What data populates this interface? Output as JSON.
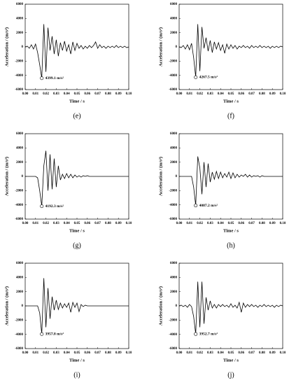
{
  "chart_data": [
    {
      "type": "line",
      "label": "(e)",
      "xlabel": "Time / s",
      "ylabel": "Acceleration / (m/s²)",
      "annotation": "4399.1 m/s²",
      "color": "#000000",
      "xlim": [
        0,
        0.1
      ],
      "ylim": [
        -6000,
        6000
      ],
      "xticks": [
        {
          "value": 0,
          "label": "0.00"
        },
        {
          "value": 0.01,
          "label": "0.01"
        },
        {
          "value": 0.02,
          "label": "0.02"
        },
        {
          "value": 0.03,
          "label": "0.03"
        },
        {
          "value": 0.04,
          "label": "0.04"
        },
        {
          "value": 0.05,
          "label": "0.05"
        },
        {
          "value": 0.06,
          "label": "0.06"
        },
        {
          "value": 0.07,
          "label": "0.07"
        },
        {
          "value": 0.08,
          "label": "0.08"
        },
        {
          "value": 0.09,
          "label": "0.09"
        },
        {
          "value": 0.1,
          "label": "0.10"
        }
      ],
      "yticks": [
        -6000,
        -4000,
        -2000,
        0,
        2000,
        4000,
        6000
      ],
      "x": [
        0,
        0.002,
        0.004,
        0.006,
        0.008,
        0.01,
        0.012,
        0.014,
        0.016,
        0.018,
        0.02,
        0.022,
        0.024,
        0.026,
        0.028,
        0.03,
        0.032,
        0.034,
        0.036,
        0.038,
        0.04,
        0.042,
        0.044,
        0.046,
        0.048,
        0.05,
        0.052,
        0.054,
        0.056,
        0.058,
        0.06,
        0.062,
        0.064,
        0.066,
        0.068,
        0.07,
        0.072,
        0.074,
        0.076,
        0.078,
        0.08,
        0.082,
        0.084,
        0.086,
        0.088,
        0.09,
        0.092,
        0.094,
        0.096,
        0.098,
        0.1
      ],
      "values": [
        0,
        100,
        -200,
        300,
        -300,
        400,
        -800,
        -2500,
        -4399.1,
        3200,
        -3500,
        2700,
        -500,
        1500,
        -1000,
        1000,
        -1300,
        600,
        -500,
        800,
        -600,
        300,
        -1000,
        700,
        -500,
        500,
        -200,
        200,
        -300,
        100,
        -200,
        200,
        -100,
        200,
        700,
        -200,
        300,
        -100,
        100,
        -200,
        100,
        -100,
        100,
        -100,
        200,
        -100,
        100,
        -100,
        100,
        -100,
        0
      ]
    },
    {
      "type": "line",
      "label": "(f)",
      "xlabel": "Time / s",
      "ylabel": "Acceleration / (m/s²)",
      "annotation": "4267.5 m/s²",
      "color": "#000000",
      "xlim": [
        0,
        0.1
      ],
      "ylim": [
        -6000,
        6000
      ],
      "xticks": [
        {
          "value": 0,
          "label": "0.00"
        },
        {
          "value": 0.01,
          "label": "0.01"
        },
        {
          "value": 0.02,
          "label": "0.02"
        },
        {
          "value": 0.03,
          "label": "0.03"
        },
        {
          "value": 0.04,
          "label": "0.04"
        },
        {
          "value": 0.05,
          "label": "0.05"
        },
        {
          "value": 0.06,
          "label": "0.06"
        },
        {
          "value": 0.07,
          "label": "0.07"
        },
        {
          "value": 0.08,
          "label": "0.08"
        },
        {
          "value": 0.09,
          "label": "0.09"
        },
        {
          "value": 0.1,
          "label": "0.10"
        }
      ],
      "yticks": [
        -6000,
        -4000,
        -2000,
        0,
        2000,
        4000,
        6000
      ],
      "x": [
        0,
        0.002,
        0.004,
        0.006,
        0.008,
        0.01,
        0.012,
        0.014,
        0.016,
        0.018,
        0.02,
        0.022,
        0.024,
        0.026,
        0.028,
        0.03,
        0.032,
        0.034,
        0.036,
        0.038,
        0.04,
        0.042,
        0.044,
        0.046,
        0.048,
        0.05,
        0.052,
        0.054,
        0.056,
        0.058,
        0.06,
        0.062,
        0.064,
        0.066,
        0.068,
        0.07,
        0.072,
        0.074,
        0.076,
        0.078,
        0.08,
        0.082,
        0.084,
        0.086,
        0.088,
        0.09,
        0.092,
        0.094,
        0.096,
        0.098,
        0.1
      ],
      "values": [
        0,
        -100,
        200,
        -300,
        300,
        -400,
        500,
        -1500,
        -4267.5,
        3200,
        -3400,
        2800,
        -200,
        1300,
        -600,
        900,
        -800,
        700,
        -300,
        600,
        -500,
        300,
        -900,
        400,
        -300,
        300,
        -200,
        200,
        -300,
        100,
        -100,
        200,
        -100,
        100,
        -200,
        200,
        -100,
        100,
        -100,
        200,
        -100,
        100,
        -100,
        100,
        -200,
        100,
        -100,
        100,
        -100,
        100,
        0
      ]
    },
    {
      "type": "line",
      "label": "(g)",
      "xlabel": "Time / s",
      "ylabel": "Acceleration / (m/s²)",
      "annotation": "4192.3 m/s²",
      "color": "#000000",
      "xlim": [
        0,
        0.1
      ],
      "ylim": [
        -6000,
        6000
      ],
      "xticks": [
        {
          "value": 0,
          "label": "0.00"
        },
        {
          "value": 0.01,
          "label": "0.01"
        },
        {
          "value": 0.02,
          "label": "0.02"
        },
        {
          "value": 0.03,
          "label": "0.03"
        },
        {
          "value": 0.04,
          "label": "0.04"
        },
        {
          "value": 0.05,
          "label": "0.05"
        },
        {
          "value": 0.06,
          "label": "0.06"
        },
        {
          "value": 0.07,
          "label": "0.07"
        },
        {
          "value": 0.08,
          "label": "0.08"
        },
        {
          "value": 0.09,
          "label": "0.09"
        },
        {
          "value": 0.1,
          "label": "0.10"
        }
      ],
      "yticks": [
        -6000,
        -4000,
        -2000,
        0,
        2000,
        4000,
        6000
      ],
      "x": [
        0,
        0.002,
        0.004,
        0.006,
        0.008,
        0.01,
        0.012,
        0.014,
        0.016,
        0.018,
        0.02,
        0.022,
        0.024,
        0.026,
        0.028,
        0.03,
        0.032,
        0.034,
        0.036,
        0.038,
        0.04,
        0.042,
        0.044,
        0.046,
        0.048,
        0.05,
        0.052,
        0.054,
        0.056,
        0.058,
        0.06,
        0.062,
        0.064,
        0.066,
        0.068,
        0.07,
        0.072,
        0.074,
        0.076,
        0.078,
        0.08,
        0.082,
        0.084,
        0.086,
        0.088,
        0.09,
        0.092,
        0.094,
        0.096,
        0.098,
        0.1
      ],
      "values": [
        0,
        0,
        0,
        0,
        0,
        0,
        -200,
        -2000,
        -4192.3,
        1500,
        3600,
        -2000,
        3100,
        -1800,
        2500,
        -1500,
        1500,
        -500,
        300,
        -300,
        400,
        -200,
        300,
        -200,
        200,
        -100,
        100,
        -100,
        100,
        0,
        100,
        0,
        0,
        0,
        0,
        0,
        0,
        0,
        0,
        0,
        0,
        0,
        0,
        0,
        0,
        0,
        0,
        0,
        0,
        0,
        0
      ]
    },
    {
      "type": "line",
      "label": "(h)",
      "xlabel": "Time / s",
      "ylabel": "Acceleration / (m/s²)",
      "annotation": "4087.2 m/s²",
      "color": "#000000",
      "xlim": [
        0,
        0.1
      ],
      "ylim": [
        -6000,
        6000
      ],
      "xticks": [
        {
          "value": 0,
          "label": "0.00"
        },
        {
          "value": 0.01,
          "label": "0.01"
        },
        {
          "value": 0.02,
          "label": "0.02"
        },
        {
          "value": 0.03,
          "label": "0.03"
        },
        {
          "value": 0.04,
          "label": "0.04"
        },
        {
          "value": 0.05,
          "label": "0.05"
        },
        {
          "value": 0.06,
          "label": "0.06"
        },
        {
          "value": 0.07,
          "label": "0.07"
        },
        {
          "value": 0.08,
          "label": "0.08"
        },
        {
          "value": 0.09,
          "label": "0.09"
        },
        {
          "value": 0.1,
          "label": "0.10"
        }
      ],
      "yticks": [
        -6000,
        -4000,
        -2000,
        0,
        2000,
        4000,
        6000
      ],
      "x": [
        0,
        0.002,
        0.004,
        0.006,
        0.008,
        0.01,
        0.012,
        0.014,
        0.016,
        0.018,
        0.02,
        0.022,
        0.024,
        0.026,
        0.028,
        0.03,
        0.032,
        0.034,
        0.036,
        0.038,
        0.04,
        0.042,
        0.044,
        0.046,
        0.048,
        0.05,
        0.052,
        0.054,
        0.056,
        0.058,
        0.06,
        0.062,
        0.064,
        0.066,
        0.068,
        0.07,
        0.072,
        0.074,
        0.076,
        0.078,
        0.08,
        0.082,
        0.084,
        0.086,
        0.088,
        0.09,
        0.092,
        0.094,
        0.096,
        0.098,
        0.1
      ],
      "values": [
        0,
        0,
        0,
        0,
        0,
        0,
        0,
        -1500,
        -4087.2,
        2800,
        1200,
        -2500,
        2000,
        -1500,
        1800,
        -800,
        600,
        -400,
        700,
        -300,
        600,
        -200,
        400,
        -100,
        600,
        -300,
        500,
        -200,
        300,
        -100,
        200,
        0,
        300,
        -100,
        200,
        -100,
        100,
        0,
        100,
        -100,
        100,
        0,
        0,
        0,
        0,
        0,
        0,
        0,
        0,
        0,
        0
      ]
    },
    {
      "type": "line",
      "label": "(i)",
      "xlabel": "Time / s",
      "ylabel": "Acceleration / (m/s²)",
      "annotation": "3957.8 m/s²",
      "color": "#000000",
      "xlim": [
        0,
        0.1
      ],
      "ylim": [
        -6000,
        6000
      ],
      "xticks": [
        {
          "value": 0,
          "label": "0.00"
        },
        {
          "value": 0.01,
          "label": "0.01"
        },
        {
          "value": 0.02,
          "label": "0.02"
        },
        {
          "value": 0.03,
          "label": "0.03"
        },
        {
          "value": 0.04,
          "label": "0.04"
        },
        {
          "value": 0.05,
          "label": "0.05"
        },
        {
          "value": 0.06,
          "label": "0.06"
        },
        {
          "value": 0.07,
          "label": "0.07"
        },
        {
          "value": 0.08,
          "label": "0.08"
        },
        {
          "value": 0.09,
          "label": "0.09"
        },
        {
          "value": 0.1,
          "label": "0.10"
        }
      ],
      "yticks": [
        -6000,
        -4000,
        -2000,
        0,
        2000,
        4000,
        6000
      ],
      "x": [
        0,
        0.002,
        0.004,
        0.006,
        0.008,
        0.01,
        0.012,
        0.014,
        0.016,
        0.018,
        0.02,
        0.022,
        0.024,
        0.026,
        0.028,
        0.03,
        0.032,
        0.034,
        0.036,
        0.038,
        0.04,
        0.042,
        0.044,
        0.046,
        0.048,
        0.05,
        0.052,
        0.054,
        0.056,
        0.058,
        0.06,
        0.062,
        0.064,
        0.066,
        0.068,
        0.07,
        0.072,
        0.074,
        0.076,
        0.078,
        0.08,
        0.082,
        0.084,
        0.086,
        0.088,
        0.09,
        0.092,
        0.094,
        0.096,
        0.098,
        0.1
      ],
      "values": [
        0,
        0,
        0,
        0,
        0,
        0,
        0,
        -1000,
        -3957.8,
        3900,
        -3000,
        2500,
        -1800,
        1300,
        -600,
        800,
        -500,
        400,
        -300,
        300,
        -200,
        400,
        -900,
        500,
        -200,
        400,
        -800,
        200,
        -100,
        100,
        0,
        0,
        0,
        0,
        0,
        0,
        0,
        0,
        0,
        0,
        0,
        0,
        0,
        0,
        0,
        0,
        0,
        0,
        0,
        0,
        0
      ]
    },
    {
      "type": "line",
      "label": "(j)",
      "xlabel": "Time / s",
      "ylabel": "Acceleration / (m/s²)",
      "annotation": "3952.7 m/s²",
      "color": "#000000",
      "xlim": [
        0,
        0.1
      ],
      "ylim": [
        -6000,
        6000
      ],
      "xticks": [
        {
          "value": 0,
          "label": "0.00"
        },
        {
          "value": 0.01,
          "label": "0.01"
        },
        {
          "value": 0.02,
          "label": "0.02"
        },
        {
          "value": 0.03,
          "label": "0.03"
        },
        {
          "value": 0.04,
          "label": "0.04"
        },
        {
          "value": 0.05,
          "label": "0.05"
        },
        {
          "value": 0.06,
          "label": "0.06"
        },
        {
          "value": 0.07,
          "label": "0.07"
        },
        {
          "value": 0.08,
          "label": "0.08"
        },
        {
          "value": 0.09,
          "label": "0.09"
        },
        {
          "value": 0.1,
          "label": "0.10"
        }
      ],
      "yticks": [
        -6000,
        -4000,
        -2000,
        0,
        2000,
        4000,
        6000
      ],
      "x": [
        0,
        0.002,
        0.004,
        0.006,
        0.008,
        0.01,
        0.012,
        0.014,
        0.016,
        0.018,
        0.02,
        0.022,
        0.024,
        0.026,
        0.028,
        0.03,
        0.032,
        0.034,
        0.036,
        0.038,
        0.04,
        0.042,
        0.044,
        0.046,
        0.048,
        0.05,
        0.052,
        0.054,
        0.056,
        0.058,
        0.06,
        0.062,
        0.064,
        0.066,
        0.068,
        0.07,
        0.072,
        0.074,
        0.076,
        0.078,
        0.08,
        0.082,
        0.084,
        0.086,
        0.088,
        0.09,
        0.092,
        0.094,
        0.096,
        0.098,
        0.1
      ],
      "values": [
        0,
        100,
        -100,
        100,
        -200,
        200,
        -100,
        -1500,
        -3952.7,
        3400,
        -3000,
        3400,
        -2500,
        1200,
        -600,
        700,
        -300,
        200,
        -300,
        200,
        -100,
        200,
        -100,
        100,
        -200,
        300,
        -200,
        100,
        -300,
        500,
        -900,
        400,
        -200,
        200,
        -100,
        200,
        -100,
        100,
        -200,
        100,
        -100,
        200,
        -100,
        100,
        -100,
        100,
        -200,
        100,
        -100,
        100,
        0
      ]
    }
  ]
}
